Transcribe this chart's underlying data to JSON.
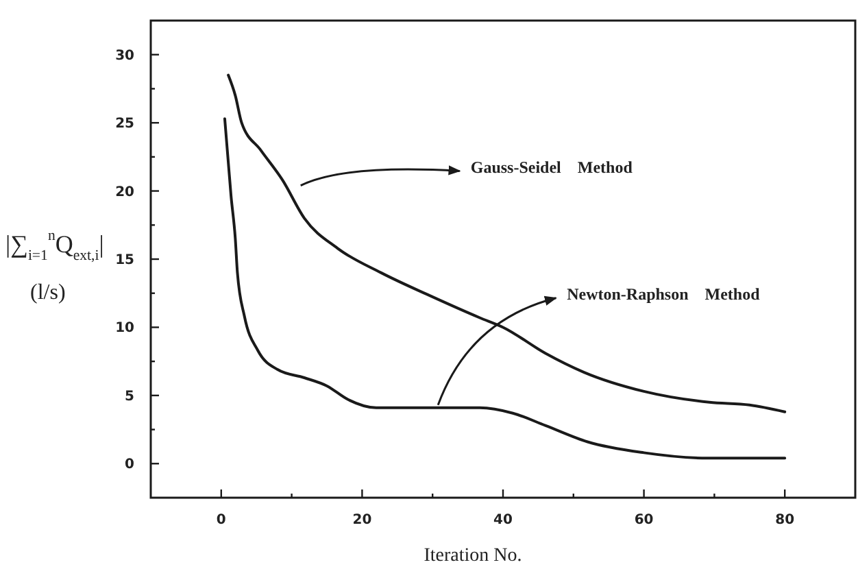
{
  "chart_data": {
    "type": "line",
    "xlabel": "Iteration No.",
    "ylabel": "|∑$_{i=1}$$^{n}$Q$_{ext,i}$| (l/s)",
    "xlim": [
      -10,
      90
    ],
    "ylim": [
      -2.5,
      32.5
    ],
    "xticks": [
      0,
      {
        "value": 10,
        "label": null
      },
      20,
      {
        "value": 30,
        "label": null
      },
      40,
      {
        "value": 50,
        "label": null
      },
      60,
      {
        "value": 70,
        "label": null
      },
      80
    ],
    "yticks": [
      0,
      {
        "value": 2.5,
        "label": null
      },
      5,
      {
        "value": 7.5,
        "label": null
      },
      10,
      {
        "value": 12.5,
        "label": null
      },
      15,
      {
        "value": 17.5,
        "label": null
      },
      20,
      {
        "value": 22.5,
        "label": null
      },
      25,
      {
        "value": 27.5,
        "label": null
      },
      30
    ],
    "grid": false,
    "marker": "none",
    "line_style": "solid",
    "series": [
      {
        "color": "#1a1a1a",
        "x": [
          1,
          2,
          2.9,
          5.6,
          8.7,
          11.8,
          16.5,
          22.7,
          29.7,
          36.7,
          40,
          46,
          51.5,
          60,
          69.3,
          75,
          80
        ],
        "values": [
          28.5,
          27,
          25,
          23,
          20.8,
          18,
          15.8,
          14,
          12.3,
          10.7,
          10,
          8.1,
          6.7,
          5.3,
          4.5,
          4.3,
          3.8
        ]
      },
      {
        "color": "#1a1a1a",
        "x": [
          0.5,
          1.4,
          2,
          2.3,
          3.3,
          5.2,
          8,
          11.8,
          15,
          18,
          22,
          30.5,
          36.7,
          41.4,
          46,
          52,
          60,
          69,
          80
        ],
        "values": [
          25.3,
          19.6,
          16.5,
          14,
          10.8,
          8.3,
          6.9,
          6.3,
          5.7,
          4.7,
          4.1,
          4.1,
          4.1,
          3.7,
          2.8,
          1.6,
          0.8,
          0.4,
          0.4
        ]
      }
    ],
    "annotations": [
      {
        "text": "Gauss-Seidel    Method",
        "x": 10.5,
        "y": 20.2
      },
      {
        "text": "Newton-Raphson    Method",
        "x": 30,
        "y": 4.1
      }
    ]
  }
}
